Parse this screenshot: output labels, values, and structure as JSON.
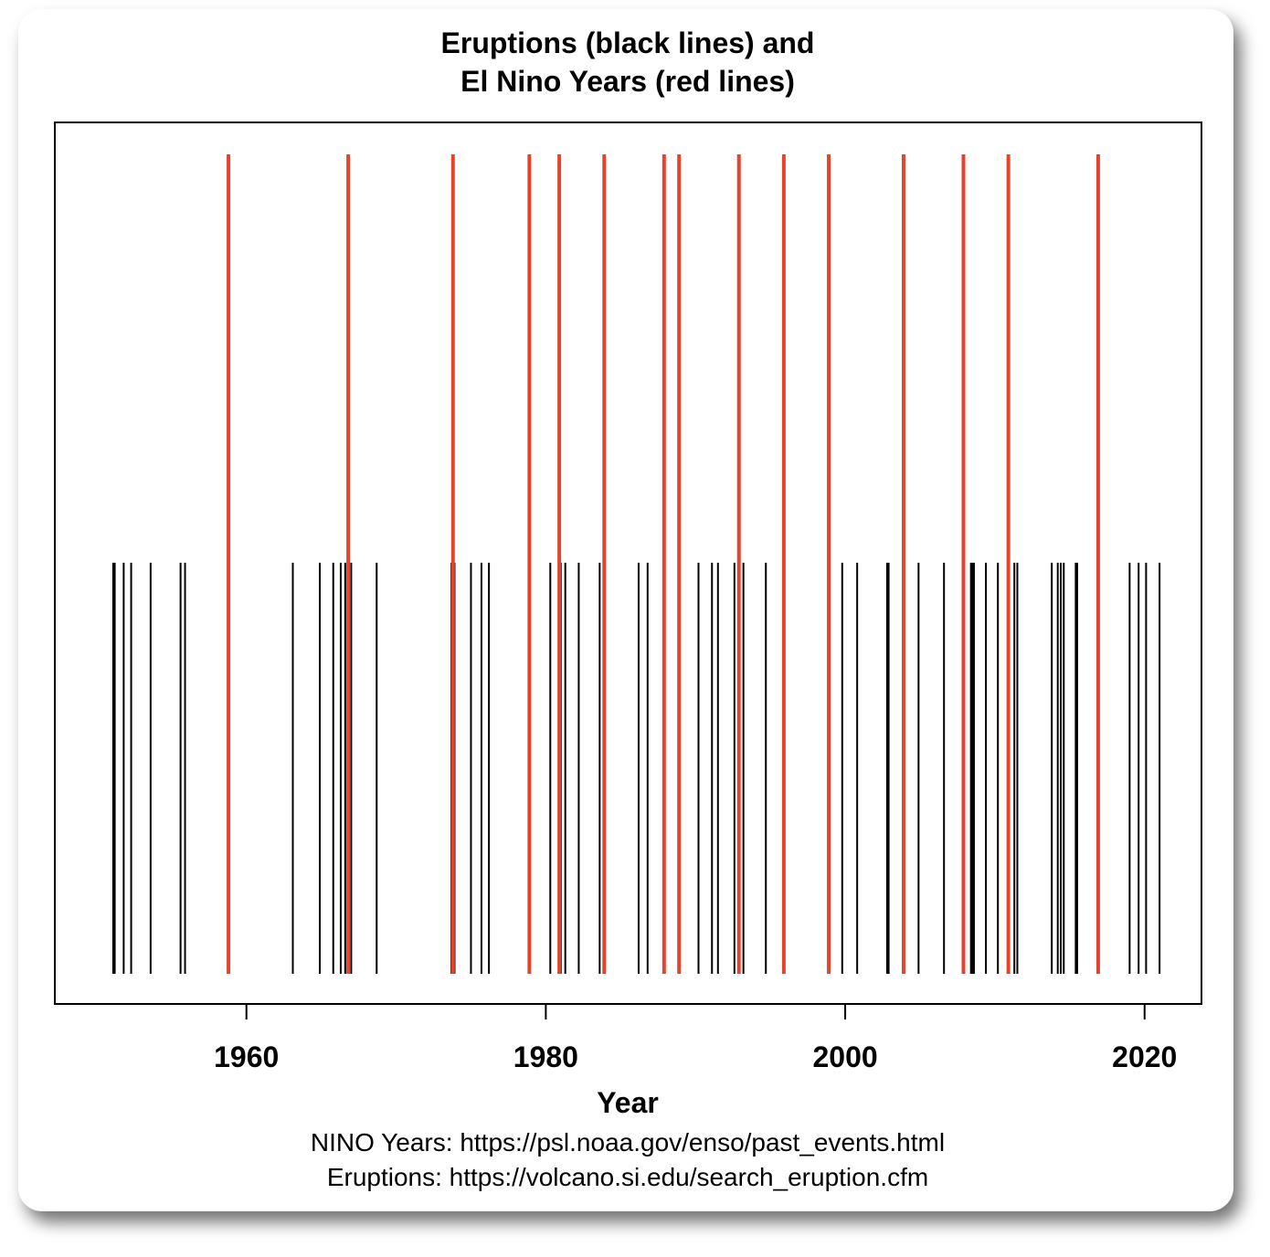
{
  "chart_data": {
    "type": "event-lines",
    "title_line1": "Eruptions (black lines) and",
    "title_line2": "El Nino Years (red lines)",
    "xlabel": "Year",
    "xlim": [
      1947.2,
      2023.8
    ],
    "xticks": [
      1960,
      1980,
      2000,
      2020
    ],
    "xtick_labels": [
      "1960",
      "1980",
      "2000",
      "2020"
    ],
    "grid": false,
    "series": [
      {
        "name": "Eruptions (black lines)",
        "color": "#000000",
        "level": "short",
        "x": [
          1951.1,
          1951.2,
          1951.8,
          1952.3,
          1953.6,
          1955.6,
          1955.9,
          1963.1,
          1964.9,
          1965.8,
          1966.3,
          1966.6,
          1966.8,
          1967.0,
          1968.7,
          1973.7,
          1973.9,
          1975.0,
          1975.7,
          1976.2,
          1980.3,
          1981.0,
          1981.3,
          1982.2,
          1983.6,
          1986.2,
          1986.8,
          1990.2,
          1991.1,
          1991.5,
          1992.6,
          1992.9,
          1993.2,
          1994.7,
          1999.8,
          2000.8,
          2002.8,
          2002.9,
          2004.9,
          2006.6,
          2008.4,
          2008.5,
          2008.6,
          2009.4,
          2010.2,
          2010.9,
          2011.3,
          2011.5,
          2013.8,
          2014.2,
          2014.4,
          2014.6,
          2015.4,
          2015.5,
          2019.0,
          2019.6,
          2020.1,
          2021.0
        ]
      },
      {
        "name": "El Nino Years (red lines)",
        "color": "#e8422f",
        "level": "tall",
        "x": [
          1958.8,
          1966.8,
          1973.8,
          1978.9,
          1980.9,
          1983.9,
          1987.9,
          1988.9,
          1992.9,
          1995.9,
          1998.9,
          2003.9,
          2007.9,
          2010.9,
          2016.9
        ]
      }
    ]
  },
  "source": {
    "line1": "NINO Years: https://psl.noaa.gov/enso/past_events.html",
    "line2": "Eruptions: https://volcano.si.edu/search_eruption.cfm"
  }
}
